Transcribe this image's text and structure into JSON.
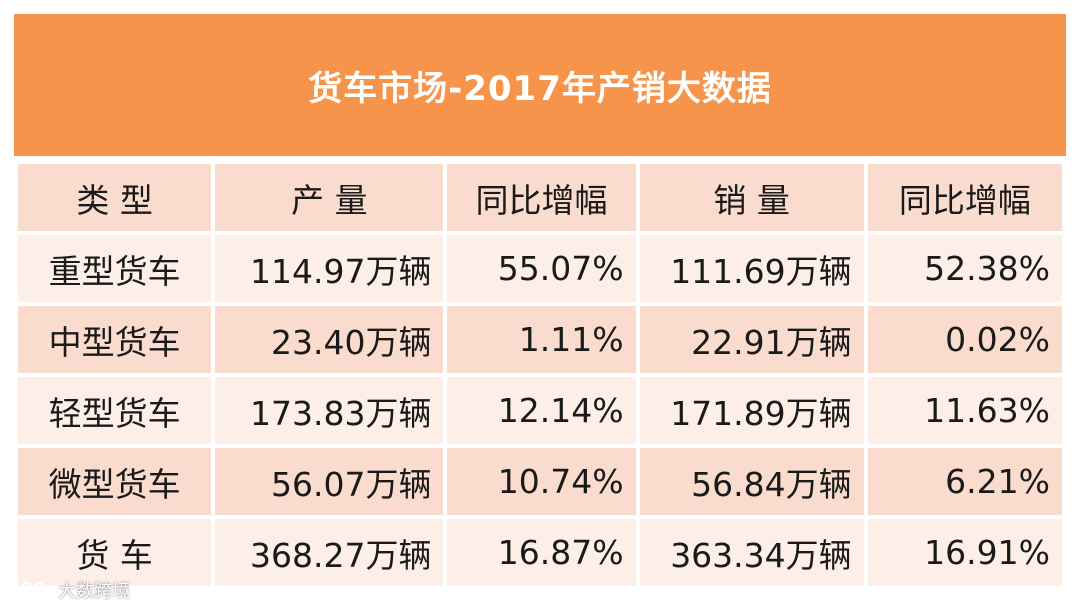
{
  "title": "货车市场-2017年产销大数据",
  "headers": [
    "类  型",
    "产  量",
    "同比增幅",
    "销  量",
    "同比增幅"
  ],
  "rows": [
    {
      "type": "重型货车",
      "production": "114.97万辆",
      "production_growth": "55.07%",
      "sales": "111.69万辆",
      "sales_growth": "52.38%"
    },
    {
      "type": "中型货车",
      "production": "23.40万辆",
      "production_growth": "1.11%",
      "sales": "22.91万辆",
      "sales_growth": "0.02%"
    },
    {
      "type": "轻型货车",
      "production": "173.83万辆",
      "production_growth": "12.14%",
      "sales": "171.89万辆",
      "sales_growth": "11.63%"
    },
    {
      "type": "微型货车",
      "production": "56.07万辆",
      "production_growth": "10.74%",
      "sales": "56.84万辆",
      "sales_growth": "6.21%"
    },
    {
      "type": "货  车",
      "production": "368.27万辆",
      "production_growth": "16.87%",
      "sales": "363.34万辆",
      "sales_growth": "16.91%"
    }
  ],
  "watermark": "大数跨境",
  "colors": {
    "title_bg": "#F5944A",
    "header_bg": "#F9DCCD",
    "row_light": "#FDEFE8",
    "row_dark": "#F9DCCD"
  }
}
